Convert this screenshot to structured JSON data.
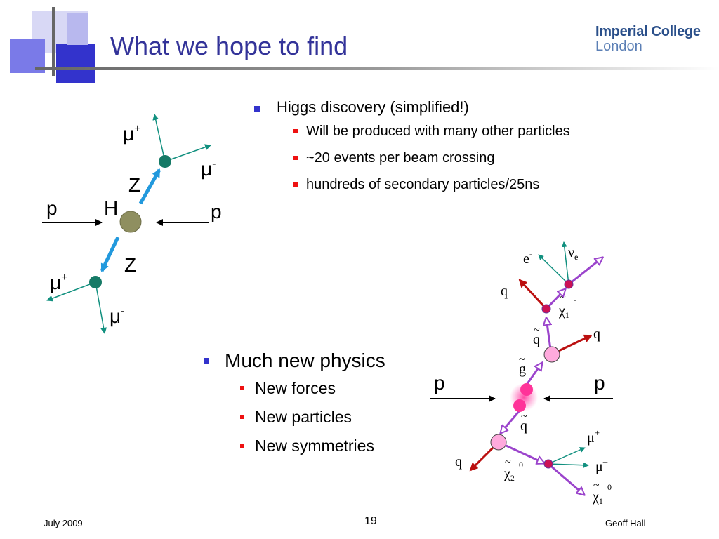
{
  "slide": {
    "title": "What we hope to find",
    "logo": {
      "line1": "Imperial College",
      "line2": "London"
    },
    "colors": {
      "title": "#333399",
      "bullet_l1": "#3333cc",
      "bullet_l2": "#ee1111"
    }
  },
  "bullets_top": {
    "heading": "Higgs discovery (simplified!)",
    "items": [
      "Will be produced with many other particles",
      "~20 events per beam crossing",
      "hundreds of secondary particles/25ns"
    ]
  },
  "bullets_bottom": {
    "heading": "Much new physics",
    "items": [
      "New forces",
      "New particles",
      "New symmetries"
    ]
  },
  "higgs_diagram": {
    "proton_left": "p",
    "proton_right": "p",
    "higgs": "H",
    "z_upper": "Z",
    "z_lower": "Z",
    "mu": "μ",
    "plus": "+",
    "minus": "-"
  },
  "susy_diagram": {
    "proton_left": "p",
    "proton_right": "p",
    "q": "q",
    "tilde": "~",
    "gluino_base": "g",
    "squark_base": "q",
    "electron": "e",
    "minus": "-",
    "plus": "+",
    "nu": "ν",
    "nu_sub": "e",
    "chi": "χ",
    "sub1": "1",
    "sub2": "2",
    "zero": "0",
    "mu": "μ",
    "mu_minus": "–"
  },
  "footer": {
    "date": "July 2009",
    "page": "19",
    "author": "Geoff Hall"
  }
}
